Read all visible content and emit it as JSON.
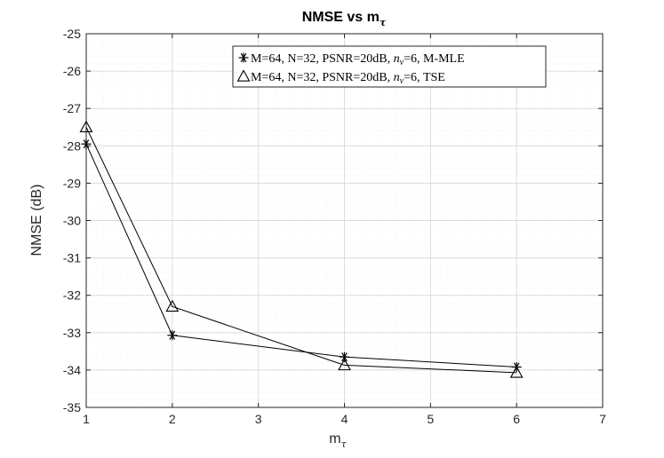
{
  "chart_data": {
    "type": "line",
    "title": "NMSE vs m",
    "title_subscript": "τ",
    "xlabel": "m",
    "xlabel_subscript": "τ",
    "ylabel": "NMSE (dB)",
    "xlim": [
      1,
      7
    ],
    "ylim": [
      -35,
      -25
    ],
    "xticks": [
      "1",
      "2",
      "3",
      "4",
      "5",
      "6",
      "7"
    ],
    "yticks": [
      "-25",
      "-26",
      "-27",
      "-28",
      "-29",
      "-30",
      "-31",
      "-32",
      "-33",
      "-34",
      "-35"
    ],
    "grid": true,
    "minor_grid": true,
    "legend_position": "top-right",
    "x": [
      1,
      2,
      4,
      6
    ],
    "series": [
      {
        "name_parts": [
          "M=64, N=32, PSNR=20dB, ",
          "n",
          "ν",
          "=6, M-MLE"
        ],
        "marker": "asterisk",
        "color": "#000000",
        "values": [
          -27.95,
          -33.07,
          -33.65,
          -33.92
        ]
      },
      {
        "name_parts": [
          "M=64, N=32, PSNR=20dB, ",
          "n",
          "ν",
          "=6, TSE"
        ],
        "marker": "triangle",
        "color": "#000000",
        "values": [
          -27.5,
          -32.3,
          -33.87,
          -34.07
        ]
      }
    ]
  }
}
